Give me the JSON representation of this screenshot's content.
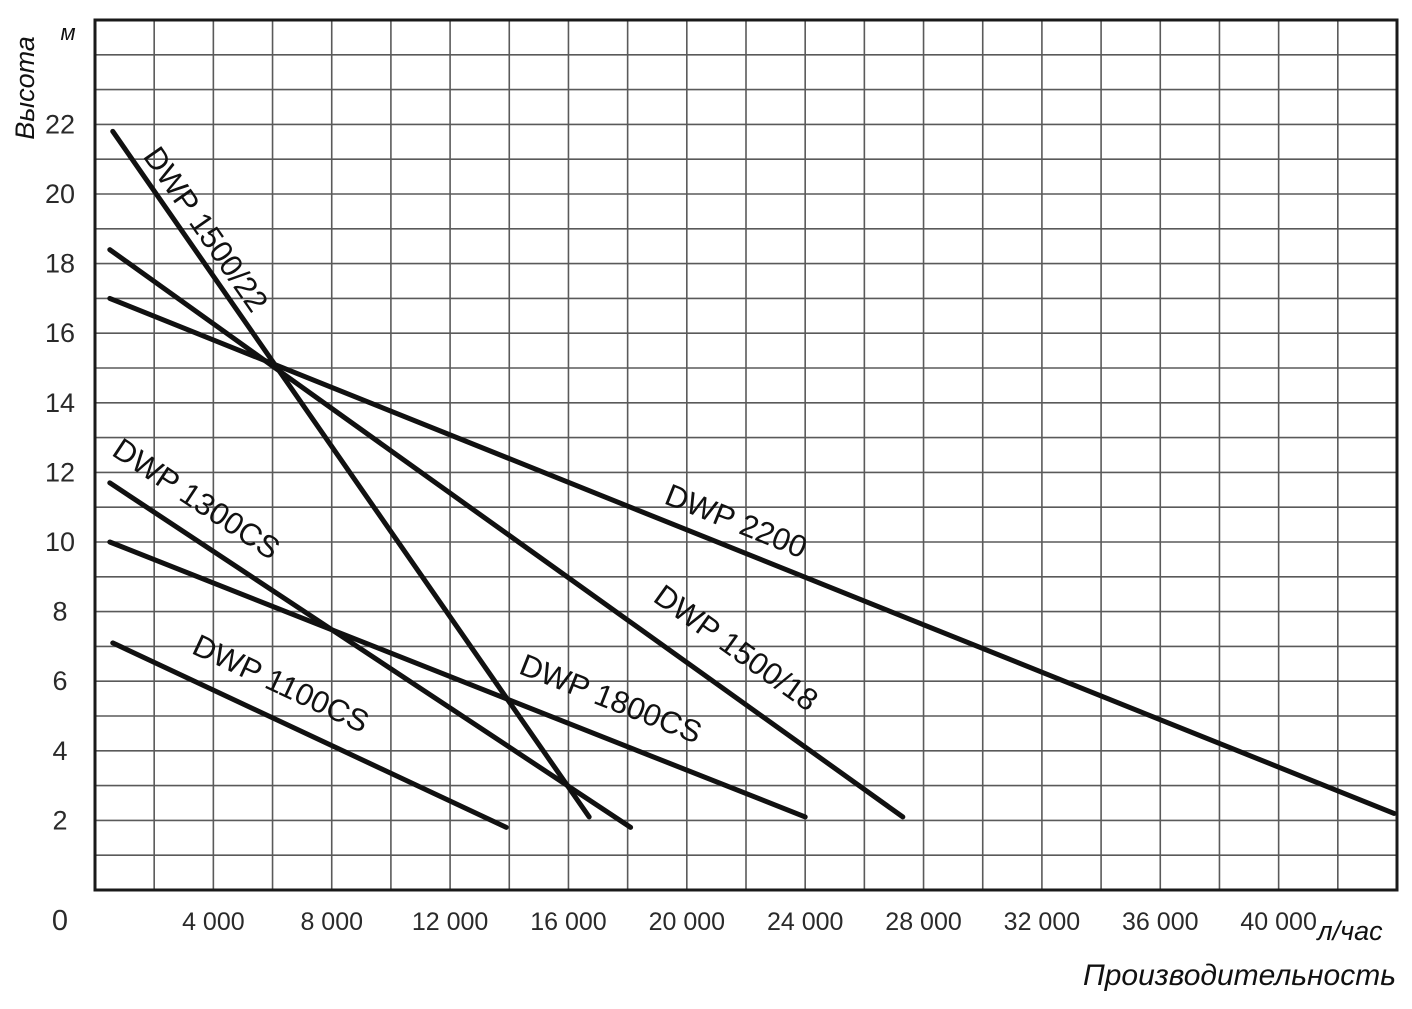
{
  "chart_data": {
    "type": "line",
    "ylabel": "Высота",
    "yunit": "м",
    "xlabel": "Производительность",
    "xunit": "л/час",
    "origin_label": "0",
    "xlim": [
      0,
      44000
    ],
    "ylim": [
      0,
      25
    ],
    "x_ticks": [
      {
        "value": 4000,
        "label": "4 000"
      },
      {
        "value": 8000,
        "label": "8 000"
      },
      {
        "value": 12000,
        "label": "12 000"
      },
      {
        "value": 16000,
        "label": "16 000"
      },
      {
        "value": 20000,
        "label": "20 000"
      },
      {
        "value": 24000,
        "label": "24 000"
      },
      {
        "value": 28000,
        "label": "28 000"
      },
      {
        "value": 32000,
        "label": "32 000"
      },
      {
        "value": 36000,
        "label": "36 000"
      },
      {
        "value": 40000,
        "label": "40 000"
      }
    ],
    "y_ticks": [
      {
        "value": 2,
        "label": "2"
      },
      {
        "value": 4,
        "label": "4"
      },
      {
        "value": 6,
        "label": "6"
      },
      {
        "value": 8,
        "label": "8"
      },
      {
        "value": 10,
        "label": "10"
      },
      {
        "value": 12,
        "label": "12"
      },
      {
        "value": 14,
        "label": "14"
      },
      {
        "value": 16,
        "label": "16"
      },
      {
        "value": 18,
        "label": "18"
      },
      {
        "value": 20,
        "label": "20"
      },
      {
        "value": 22,
        "label": "22"
      }
    ],
    "grid": true,
    "series": [
      {
        "name": "DWP 1500/22",
        "x": [
          600,
          16700
        ],
        "y": [
          21.8,
          2.1
        ]
      },
      {
        "name": "DWP 1500/18",
        "x": [
          500,
          27300
        ],
        "y": [
          18.4,
          2.1
        ]
      },
      {
        "name": "DWP 2200",
        "x": [
          500,
          43900
        ],
        "y": [
          17.0,
          2.2
        ]
      },
      {
        "name": "DWP 1300CS",
        "x": [
          500,
          18100
        ],
        "y": [
          11.7,
          1.8
        ]
      },
      {
        "name": "DWP 1800CS",
        "x": [
          500,
          24000
        ],
        "y": [
          10.0,
          2.1
        ]
      },
      {
        "name": "DWP 1100CS",
        "x": [
          600,
          13900
        ],
        "y": [
          7.1,
          1.8
        ]
      }
    ]
  }
}
